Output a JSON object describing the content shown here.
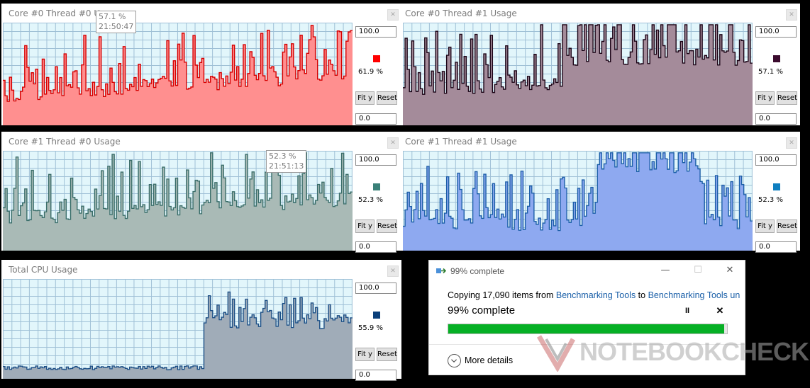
{
  "panels": [
    {
      "id": "p0",
      "title": "Core #0 Thread #0 Usage",
      "max": "100.0",
      "min": "0.0",
      "current": "61.9 %",
      "fit_label": "Fit y",
      "reset_label": "Reset",
      "close_label": "✕",
      "color": "#ff0000",
      "stroke": "#d60000",
      "fill": "#ff8f8f",
      "seed": 7,
      "base": 22,
      "high": 0.45,
      "pattern": "spiky",
      "tooltip": {
        "value": "57.1 %",
        "time": "21:50:47"
      }
    },
    {
      "id": "p1",
      "title": "Core #0 Thread #1 Usage",
      "max": "100.0",
      "min": "0.0",
      "current": "57.1 %",
      "fit_label": "Fit y",
      "reset_label": "Reset",
      "close_label": "✕",
      "color": "#3b0b2e",
      "stroke": "#1c0416",
      "fill": "#a48b9a",
      "seed": 13,
      "base": 28,
      "high": 0.5,
      "pattern": "rising"
    },
    {
      "id": "p2",
      "title": "Core #1 Thread #0 Usage",
      "max": "100.0",
      "min": "0.0",
      "current": "52.3 %",
      "fit_label": "Fit y",
      "reset_label": "Reset",
      "close_label": "✕",
      "color": "#3a8078",
      "stroke": "#3a6e6a",
      "fill": "#a9bab6",
      "seed": 21,
      "base": 25,
      "high": 0.45,
      "pattern": "spiky",
      "tooltip": {
        "value": "52.3 %",
        "time": "21:51:13"
      }
    },
    {
      "id": "p3",
      "title": "Core #1 Thread #1 Usage",
      "max": "100.0",
      "min": "0.0",
      "current": "52.3 %",
      "fit_label": "Fit y",
      "reset_label": "Reset",
      "close_label": "✕",
      "color": "#0f7fc0",
      "stroke": "#1c5fa8",
      "fill": "#8ea9f0",
      "seed": 33,
      "base": 20,
      "high": 0.5,
      "pattern": "plateau"
    },
    {
      "id": "p4",
      "title": "Total CPU Usage",
      "max": "100.0",
      "min": "0.0",
      "current": "55.9 %",
      "fit_label": "Fit y",
      "reset_label": "Reset",
      "close_label": "✕",
      "color": "#0a3f7a",
      "stroke": "#1c4f86",
      "fill": "#a0acb8",
      "seed": 5,
      "base": 20,
      "high": 0.5,
      "pattern": "step"
    }
  ],
  "dialog": {
    "title": "99% complete",
    "minimize": "—",
    "maximize": "☐",
    "close": "✕",
    "copy_prefix": "Copying 17,090 items from ",
    "source": "Benchmarking Tools",
    "copy_mid": " to ",
    "dest": "Benchmarking Tools un",
    "percent_text": "99% complete",
    "progress": 0.99,
    "pause_icon": "II",
    "stop_icon": "✕",
    "more_details": "More details",
    "bar_color": "#06b025"
  },
  "watermark": {
    "text": "NOTEBOOKCHECK"
  }
}
